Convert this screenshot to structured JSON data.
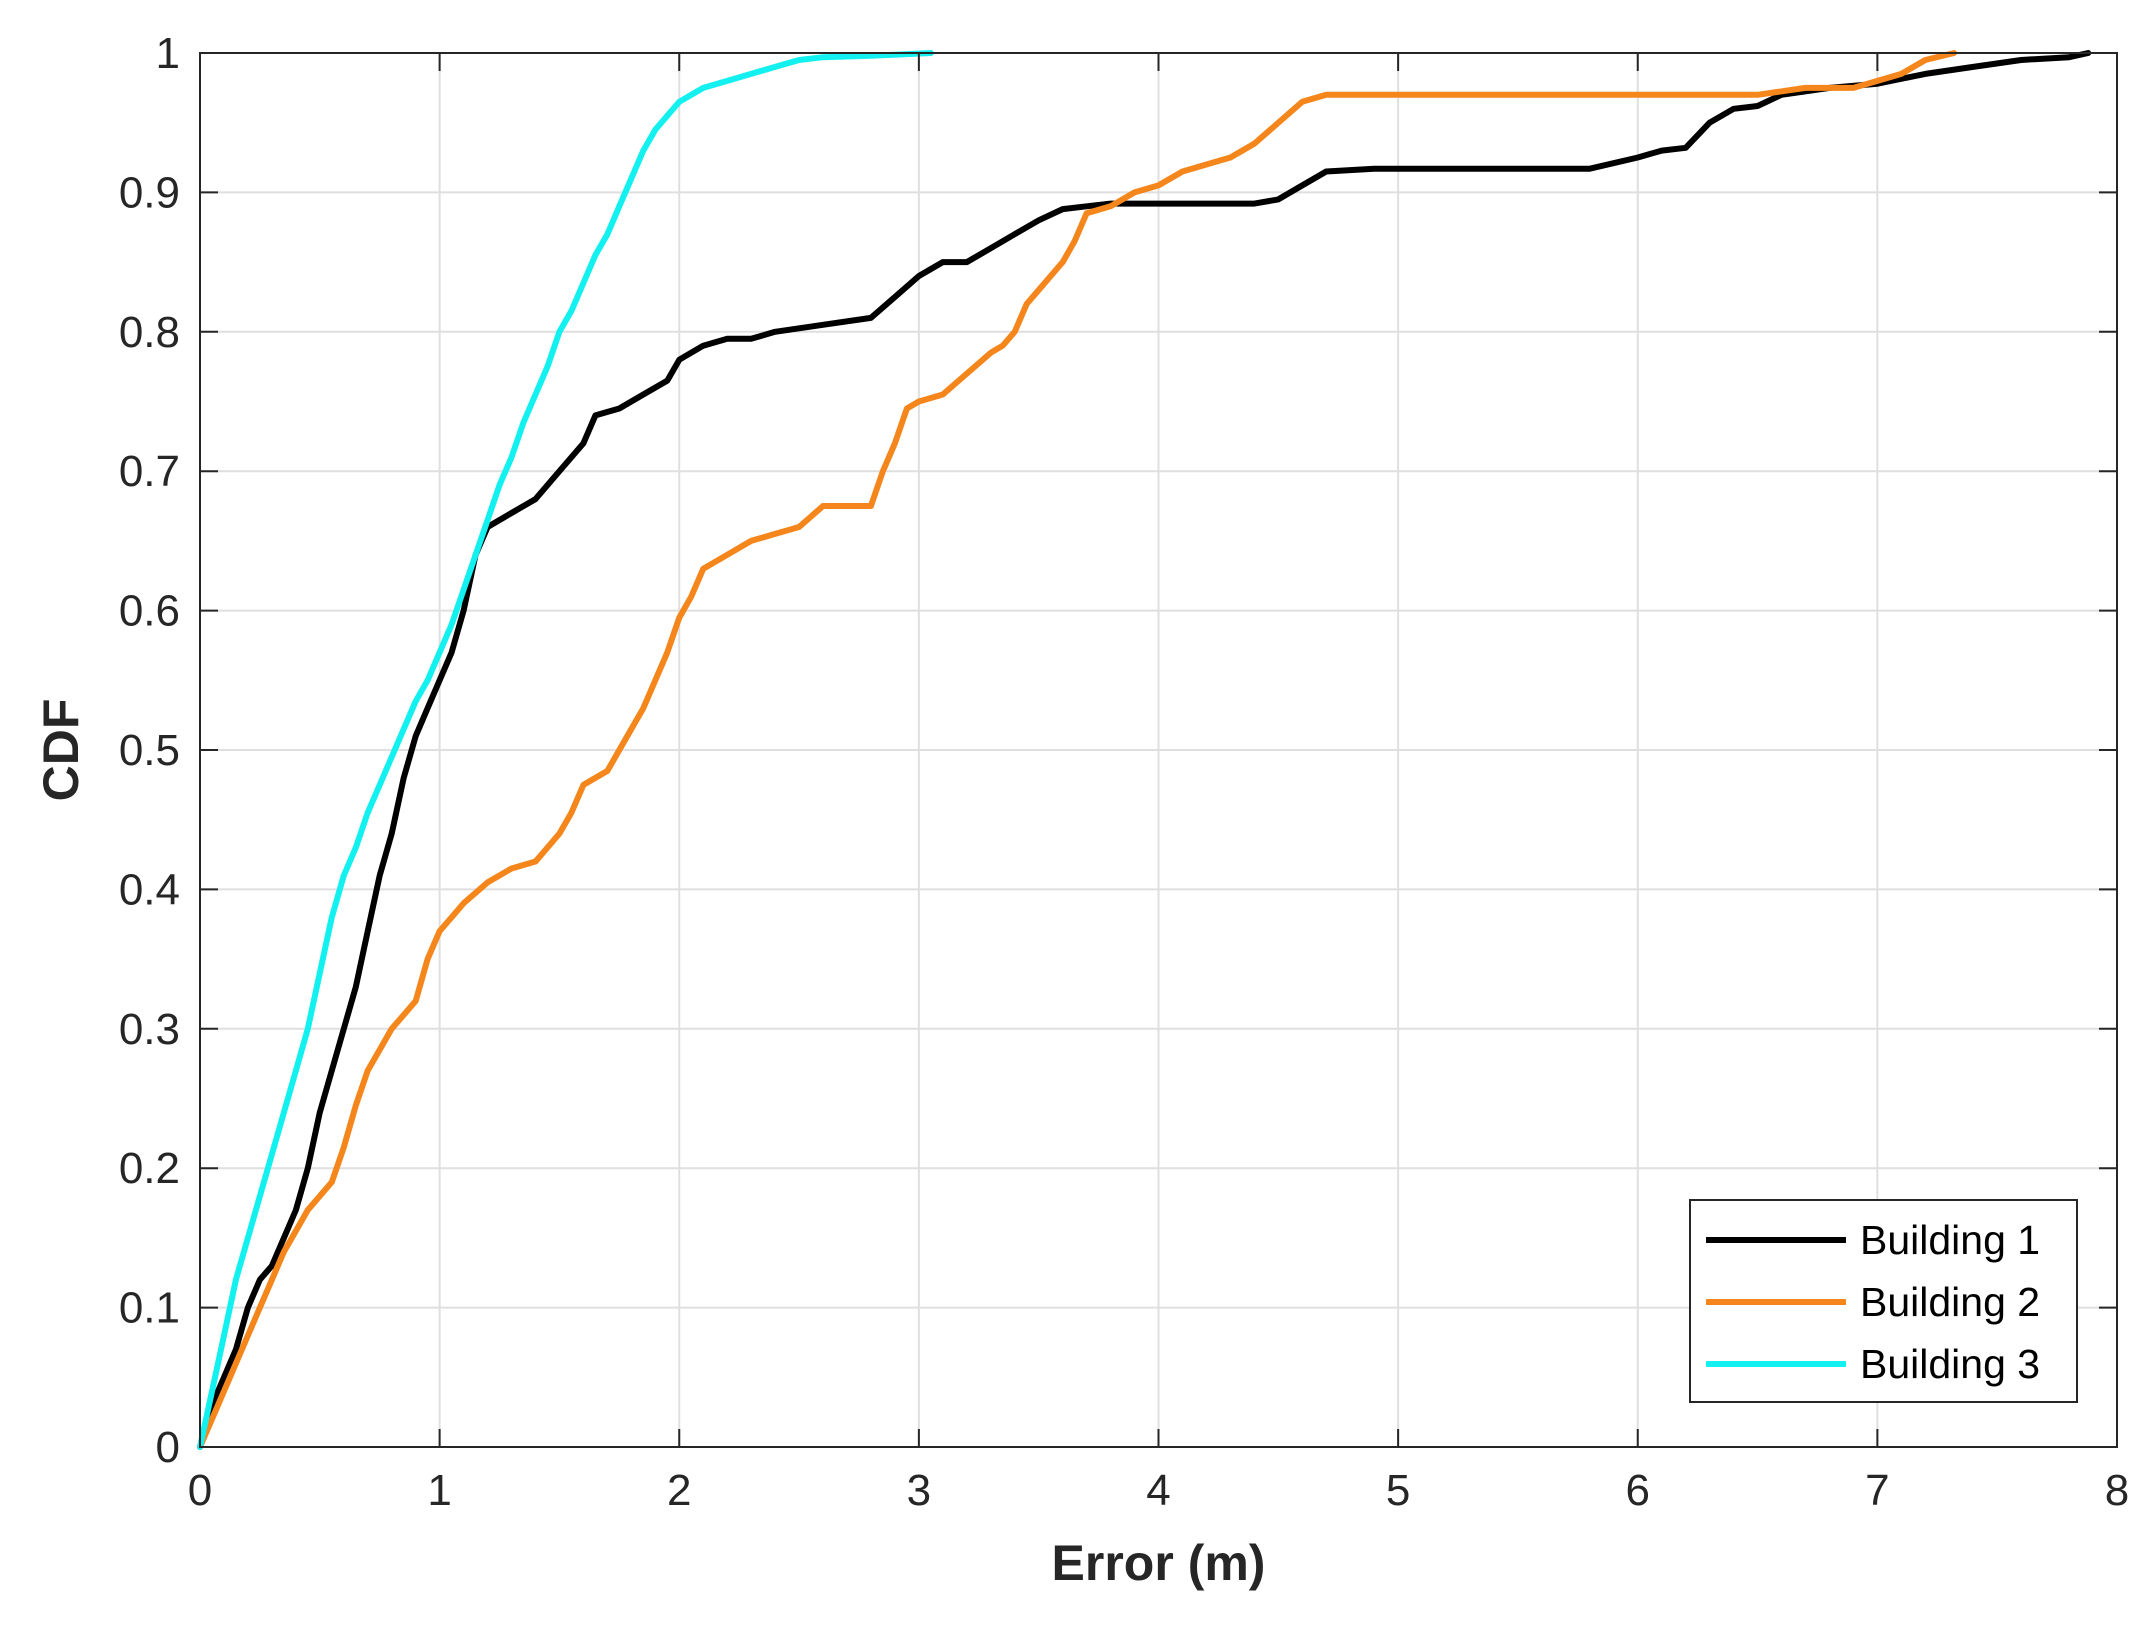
{
  "chart_data": {
    "type": "line",
    "title": "",
    "xlabel": "Error (m)",
    "ylabel": "CDF",
    "xlim": [
      0,
      8
    ],
    "ylim": [
      0,
      1
    ],
    "xticks": [
      0,
      1,
      2,
      3,
      4,
      5,
      6,
      7,
      8
    ],
    "yticks": [
      0,
      0.1,
      0.2,
      0.3,
      0.4,
      0.5,
      0.6,
      0.7,
      0.8,
      0.9,
      1
    ],
    "xtick_labels": [
      "0",
      "1",
      "2",
      "3",
      "4",
      "5",
      "6",
      "7",
      "8"
    ],
    "ytick_labels": [
      "0",
      "0.1",
      "0.2",
      "0.3",
      "0.4",
      "0.5",
      "0.6",
      "0.7",
      "0.8",
      "0.9",
      "1"
    ],
    "grid": true,
    "legend_position": "bottom-right",
    "series": [
      {
        "name": "Building 1",
        "color": "#000000",
        "points": [
          [
            0,
            0
          ],
          [
            0.05,
            0.03
          ],
          [
            0.1,
            0.05
          ],
          [
            0.15,
            0.07
          ],
          [
            0.2,
            0.1
          ],
          [
            0.25,
            0.12
          ],
          [
            0.3,
            0.13
          ],
          [
            0.35,
            0.15
          ],
          [
            0.4,
            0.17
          ],
          [
            0.45,
            0.2
          ],
          [
            0.5,
            0.24
          ],
          [
            0.55,
            0.27
          ],
          [
            0.6,
            0.3
          ],
          [
            0.65,
            0.33
          ],
          [
            0.7,
            0.37
          ],
          [
            0.75,
            0.41
          ],
          [
            0.8,
            0.44
          ],
          [
            0.85,
            0.48
          ],
          [
            0.9,
            0.51
          ],
          [
            0.95,
            0.53
          ],
          [
            1.0,
            0.55
          ],
          [
            1.05,
            0.57
          ],
          [
            1.1,
            0.6
          ],
          [
            1.15,
            0.64
          ],
          [
            1.2,
            0.66
          ],
          [
            1.3,
            0.67
          ],
          [
            1.4,
            0.68
          ],
          [
            1.5,
            0.7
          ],
          [
            1.6,
            0.72
          ],
          [
            1.65,
            0.74
          ],
          [
            1.75,
            0.745
          ],
          [
            1.85,
            0.755
          ],
          [
            1.95,
            0.765
          ],
          [
            2.0,
            0.78
          ],
          [
            2.1,
            0.79
          ],
          [
            2.2,
            0.795
          ],
          [
            2.3,
            0.795
          ],
          [
            2.4,
            0.8
          ],
          [
            2.6,
            0.805
          ],
          [
            2.8,
            0.81
          ],
          [
            2.9,
            0.825
          ],
          [
            3.0,
            0.84
          ],
          [
            3.1,
            0.85
          ],
          [
            3.2,
            0.85
          ],
          [
            3.3,
            0.86
          ],
          [
            3.4,
            0.87
          ],
          [
            3.5,
            0.88
          ],
          [
            3.6,
            0.888
          ],
          [
            3.7,
            0.89
          ],
          [
            3.8,
            0.892
          ],
          [
            4.0,
            0.892
          ],
          [
            4.2,
            0.892
          ],
          [
            4.4,
            0.892
          ],
          [
            4.5,
            0.895
          ],
          [
            4.6,
            0.905
          ],
          [
            4.7,
            0.915
          ],
          [
            4.9,
            0.917
          ],
          [
            5.0,
            0.917
          ],
          [
            5.5,
            0.917
          ],
          [
            5.8,
            0.917
          ],
          [
            6.0,
            0.925
          ],
          [
            6.1,
            0.93
          ],
          [
            6.2,
            0.932
          ],
          [
            6.3,
            0.95
          ],
          [
            6.4,
            0.96
          ],
          [
            6.5,
            0.962
          ],
          [
            6.6,
            0.97
          ],
          [
            6.8,
            0.975
          ],
          [
            7.0,
            0.978
          ],
          [
            7.2,
            0.985
          ],
          [
            7.4,
            0.99
          ],
          [
            7.6,
            0.995
          ],
          [
            7.8,
            0.997
          ],
          [
            7.88,
            1.0
          ]
        ]
      },
      {
        "name": "Building 2",
        "color": "#f4861c",
        "points": [
          [
            0,
            0
          ],
          [
            0.05,
            0.02
          ],
          [
            0.1,
            0.04
          ],
          [
            0.15,
            0.06
          ],
          [
            0.2,
            0.08
          ],
          [
            0.25,
            0.1
          ],
          [
            0.3,
            0.12
          ],
          [
            0.35,
            0.14
          ],
          [
            0.4,
            0.155
          ],
          [
            0.45,
            0.17
          ],
          [
            0.5,
            0.18
          ],
          [
            0.55,
            0.19
          ],
          [
            0.6,
            0.215
          ],
          [
            0.65,
            0.245
          ],
          [
            0.7,
            0.27
          ],
          [
            0.75,
            0.285
          ],
          [
            0.8,
            0.3
          ],
          [
            0.85,
            0.31
          ],
          [
            0.9,
            0.32
          ],
          [
            0.95,
            0.35
          ],
          [
            1.0,
            0.37
          ],
          [
            1.05,
            0.38
          ],
          [
            1.1,
            0.39
          ],
          [
            1.2,
            0.405
          ],
          [
            1.3,
            0.415
          ],
          [
            1.4,
            0.42
          ],
          [
            1.45,
            0.43
          ],
          [
            1.5,
            0.44
          ],
          [
            1.55,
            0.455
          ],
          [
            1.6,
            0.475
          ],
          [
            1.65,
            0.48
          ],
          [
            1.7,
            0.485
          ],
          [
            1.75,
            0.5
          ],
          [
            1.8,
            0.515
          ],
          [
            1.85,
            0.53
          ],
          [
            1.9,
            0.55
          ],
          [
            1.95,
            0.57
          ],
          [
            2.0,
            0.595
          ],
          [
            2.05,
            0.61
          ],
          [
            2.1,
            0.63
          ],
          [
            2.2,
            0.64
          ],
          [
            2.3,
            0.65
          ],
          [
            2.4,
            0.655
          ],
          [
            2.5,
            0.66
          ],
          [
            2.6,
            0.675
          ],
          [
            2.7,
            0.675
          ],
          [
            2.8,
            0.675
          ],
          [
            2.85,
            0.7
          ],
          [
            2.9,
            0.72
          ],
          [
            2.95,
            0.745
          ],
          [
            3.0,
            0.75
          ],
          [
            3.1,
            0.755
          ],
          [
            3.2,
            0.77
          ],
          [
            3.3,
            0.785
          ],
          [
            3.35,
            0.79
          ],
          [
            3.4,
            0.8
          ],
          [
            3.45,
            0.82
          ],
          [
            3.5,
            0.83
          ],
          [
            3.6,
            0.85
          ],
          [
            3.65,
            0.865
          ],
          [
            3.7,
            0.885
          ],
          [
            3.8,
            0.89
          ],
          [
            3.9,
            0.9
          ],
          [
            4.0,
            0.905
          ],
          [
            4.1,
            0.915
          ],
          [
            4.2,
            0.92
          ],
          [
            4.3,
            0.925
          ],
          [
            4.4,
            0.935
          ],
          [
            4.5,
            0.95
          ],
          [
            4.6,
            0.965
          ],
          [
            4.7,
            0.97
          ],
          [
            5.0,
            0.97
          ],
          [
            5.5,
            0.97
          ],
          [
            6.0,
            0.97
          ],
          [
            6.5,
            0.97
          ],
          [
            6.7,
            0.975
          ],
          [
            6.9,
            0.975
          ],
          [
            7.0,
            0.98
          ],
          [
            7.1,
            0.985
          ],
          [
            7.2,
            0.995
          ],
          [
            7.32,
            1.0
          ]
        ]
      },
      {
        "name": "Building 3",
        "color": "#12f0f0",
        "points": [
          [
            0,
            0
          ],
          [
            0.05,
            0.04
          ],
          [
            0.1,
            0.08
          ],
          [
            0.15,
            0.12
          ],
          [
            0.2,
            0.15
          ],
          [
            0.25,
            0.18
          ],
          [
            0.3,
            0.21
          ],
          [
            0.35,
            0.24
          ],
          [
            0.4,
            0.27
          ],
          [
            0.45,
            0.3
          ],
          [
            0.5,
            0.34
          ],
          [
            0.55,
            0.38
          ],
          [
            0.6,
            0.41
          ],
          [
            0.65,
            0.43
          ],
          [
            0.7,
            0.455
          ],
          [
            0.75,
            0.475
          ],
          [
            0.8,
            0.495
          ],
          [
            0.85,
            0.515
          ],
          [
            0.9,
            0.535
          ],
          [
            0.95,
            0.55
          ],
          [
            1.0,
            0.57
          ],
          [
            1.05,
            0.59
          ],
          [
            1.1,
            0.615
          ],
          [
            1.15,
            0.64
          ],
          [
            1.2,
            0.665
          ],
          [
            1.25,
            0.69
          ],
          [
            1.3,
            0.71
          ],
          [
            1.35,
            0.735
          ],
          [
            1.4,
            0.755
          ],
          [
            1.45,
            0.775
          ],
          [
            1.5,
            0.8
          ],
          [
            1.55,
            0.815
          ],
          [
            1.6,
            0.835
          ],
          [
            1.65,
            0.855
          ],
          [
            1.7,
            0.87
          ],
          [
            1.75,
            0.89
          ],
          [
            1.8,
            0.91
          ],
          [
            1.85,
            0.93
          ],
          [
            1.9,
            0.945
          ],
          [
            1.95,
            0.955
          ],
          [
            2.0,
            0.965
          ],
          [
            2.1,
            0.975
          ],
          [
            2.2,
            0.98
          ],
          [
            2.3,
            0.985
          ],
          [
            2.4,
            0.99
          ],
          [
            2.5,
            0.995
          ],
          [
            2.6,
            0.997
          ],
          [
            2.8,
            0.998
          ],
          [
            3.05,
            1.0
          ]
        ]
      }
    ]
  }
}
